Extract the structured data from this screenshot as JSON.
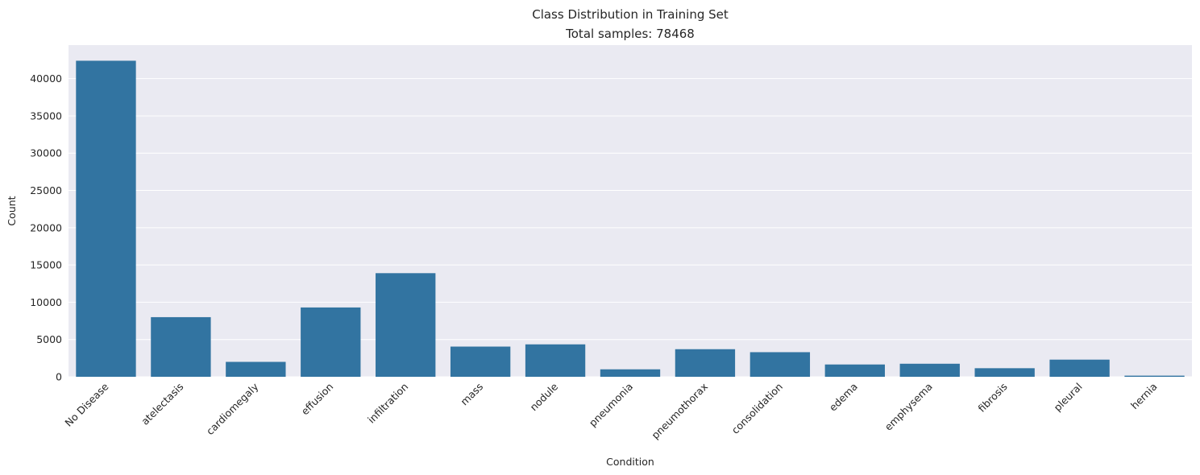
{
  "chart_data": {
    "type": "bar",
    "title": "Class Distribution in Training Set",
    "subtitle": "Total samples: 78468",
    "xlabel": "Condition",
    "ylabel": "Count",
    "categories": [
      "No Disease",
      "atelectasis",
      "cardiomegaly",
      "effusion",
      "infiltration",
      "mass",
      "nodule",
      "pneumonia",
      "pneumothorax",
      "consolidation",
      "edema",
      "emphysema",
      "fibrosis",
      "pleural",
      "hernia"
    ],
    "values": [
      42400,
      8000,
      2000,
      9300,
      13900,
      4050,
      4350,
      1000,
      3700,
      3300,
      1650,
      1750,
      1150,
      2300,
      150
    ],
    "ylim": [
      0,
      44500
    ],
    "yticks": [
      0,
      5000,
      10000,
      15000,
      20000,
      25000,
      30000,
      35000,
      40000
    ],
    "grid": true,
    "legend": "none",
    "bar_color": "#3274a1",
    "background_color": "#eaeaf2",
    "grid_color": "#ffffff"
  }
}
